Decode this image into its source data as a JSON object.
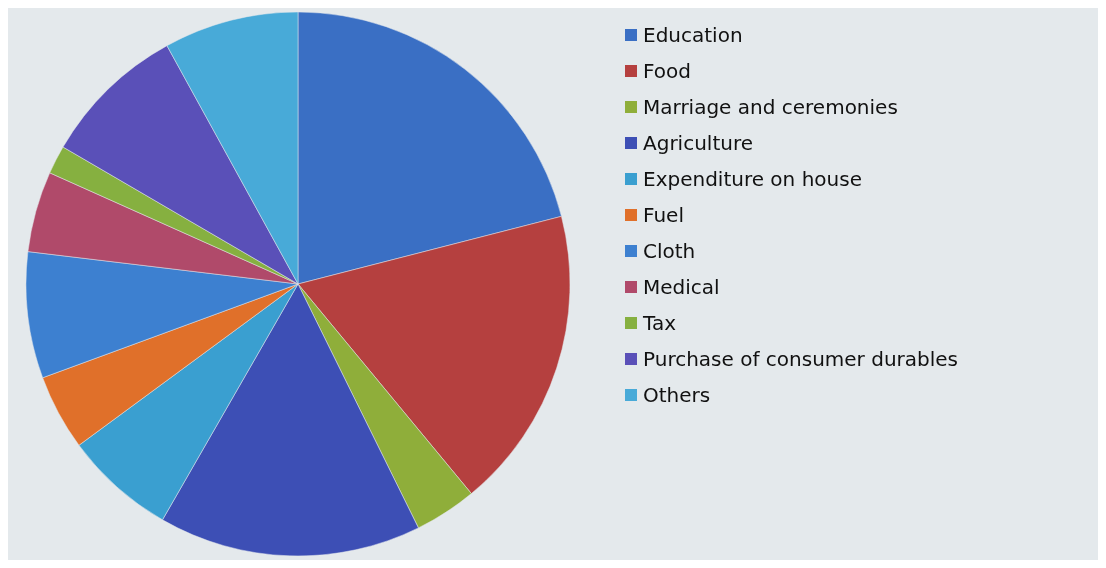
{
  "chart_data": {
    "type": "pie",
    "legend": "right",
    "categories": [
      "Education",
      "Food",
      "Marriage and ceremonies",
      "Agriculture",
      "Expenditure on house",
      "Fuel",
      "Cloth",
      "Medical",
      "Tax",
      "Purchase of consumer durables",
      "Others"
    ],
    "values": [
      21,
      18,
      3.7,
      15.6,
      6.6,
      4.5,
      7.5,
      4.8,
      1.7,
      8.6,
      8
    ],
    "colors": [
      "#3a6fc4",
      "#b5403f",
      "#8fae3a",
      "#3d4fb5",
      "#3a9fd0",
      "#e0702a",
      "#3d80d0",
      "#b04a6a",
      "#86b040",
      "#5a50b8",
      "#48aad8"
    ]
  }
}
